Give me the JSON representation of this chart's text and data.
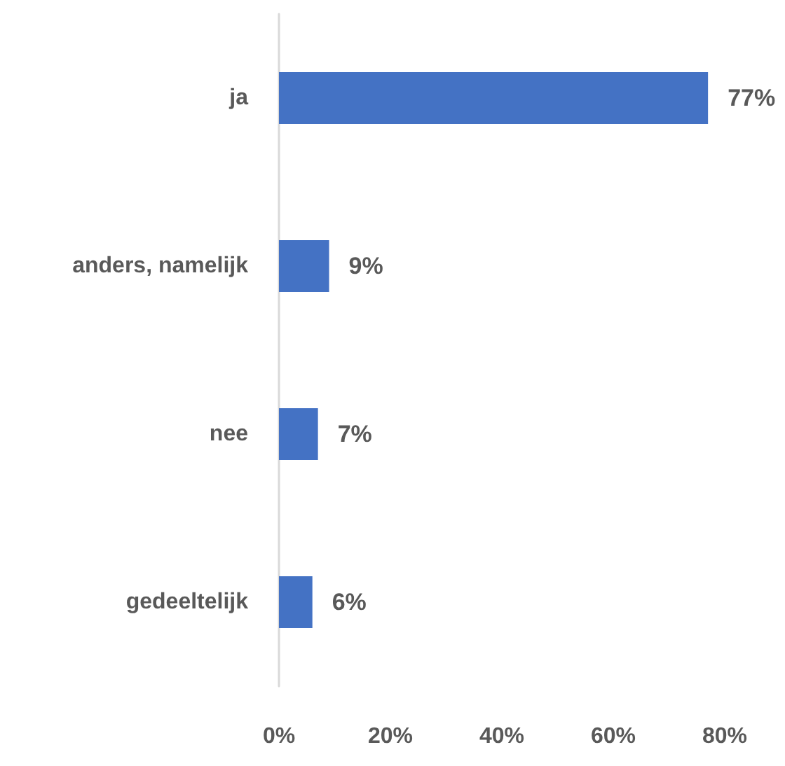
{
  "chart_data": {
    "type": "bar",
    "orientation": "horizontal",
    "categories": [
      "ja",
      "anders, namelijk",
      "nee",
      "gedeeltelijk"
    ],
    "values": [
      77,
      9,
      7,
      6
    ],
    "color": "#4472c4",
    "value_labels": [
      "77%",
      "9%",
      "7%",
      "6%"
    ],
    "xlim": [
      0,
      80
    ],
    "xticks": [
      {
        "value": 0,
        "label": "0%"
      },
      {
        "value": 20,
        "label": "20%"
      },
      {
        "value": 40,
        "label": "40%"
      },
      {
        "value": 60,
        "label": "60%"
      },
      {
        "value": 80,
        "label": "80%"
      }
    ]
  }
}
